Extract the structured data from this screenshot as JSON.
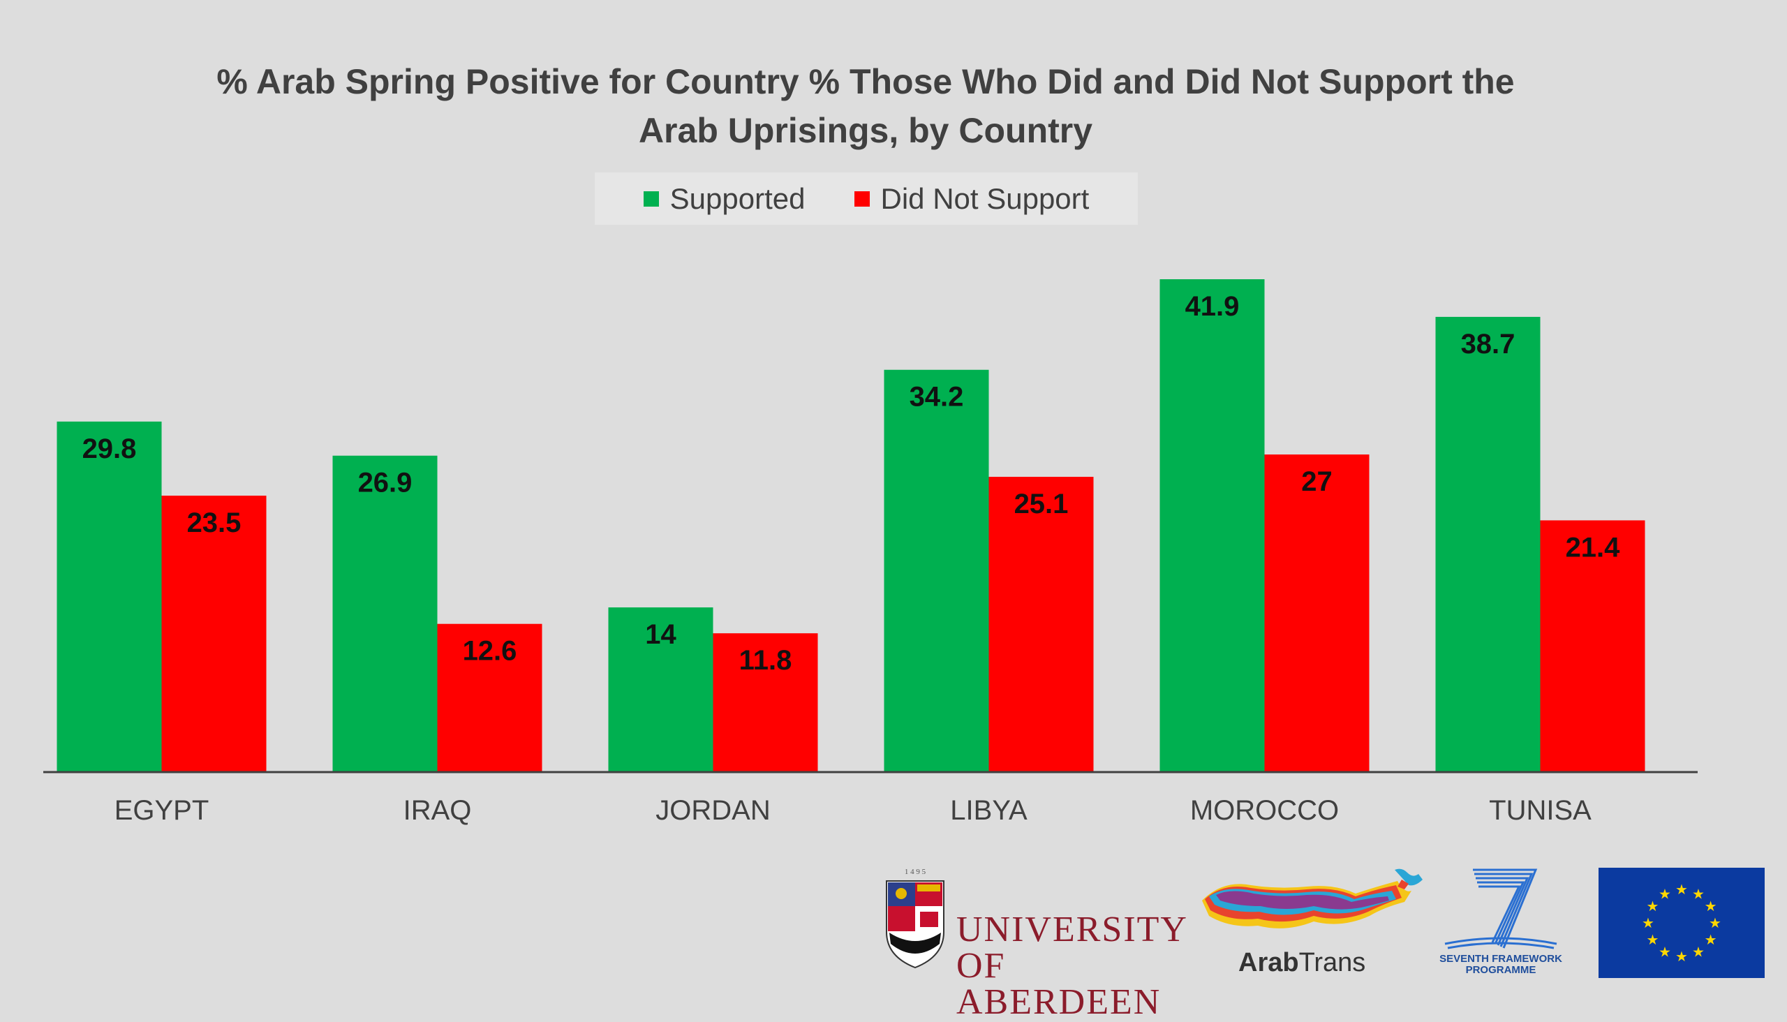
{
  "title_line1": "% Arab Spring Positive for Country % Those Who Did and Did Not Support the",
  "title_line2": "Arab Uprisings, by Country",
  "legend": {
    "supported": "Supported",
    "did_not_support": "Did Not Support"
  },
  "colors": {
    "supported": "#00b050",
    "did_not_support": "#ff0000",
    "background": "#dddddd",
    "axis": "#404040"
  },
  "chart_data": {
    "type": "bar",
    "title": "% Arab Spring Positive for Country % Those Who Did and Did Not Support the Arab Uprisings, by Country",
    "categories": [
      "EGYPT",
      "IRAQ",
      "JORDAN",
      "LIBYA",
      "MOROCCO",
      "TUNISA"
    ],
    "series": [
      {
        "name": "Supported",
        "values": [
          29.8,
          26.9,
          14,
          34.2,
          41.9,
          38.7
        ]
      },
      {
        "name": "Did Not Support",
        "values": [
          23.5,
          12.6,
          11.8,
          25.1,
          27,
          21.4
        ]
      }
    ],
    "value_labels": {
      "supported": [
        "29.8",
        "26.9",
        "14",
        "34.2",
        "41.9",
        "38.7"
      ],
      "did_not_support": [
        "23.5",
        "12.6",
        "11.8",
        "25.1",
        "27",
        "21.4"
      ]
    },
    "xlabel": "",
    "ylabel": "",
    "ylim": [
      0,
      44
    ],
    "grid": false,
    "legend_position": "top-center"
  },
  "logos": {
    "uoa_year": "1 4 9 5",
    "uoa_line1": "UNIVERSITY",
    "uoa_line2": "OF ABERDEEN",
    "arabtrans_bold": "Arab",
    "arabtrans_light": "Trans",
    "fp7_line1": "SEVENTH FRAMEWORK",
    "fp7_line2": "PROGRAMME",
    "eu_flag_icon": "eu-flag-icon"
  }
}
